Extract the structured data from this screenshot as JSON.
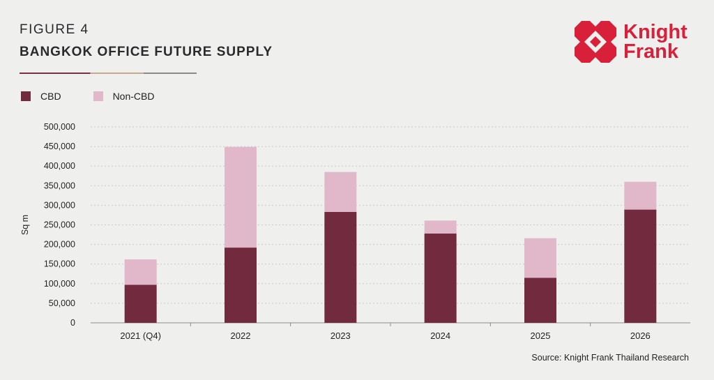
{
  "header": {
    "figure_label": "FIGURE 4",
    "title": "BANGKOK OFFICE FUTURE SUPPLY"
  },
  "logo": {
    "line1": "Knight",
    "line2": "Frank",
    "color": "#d8203a"
  },
  "colors": {
    "cbd": "#722a3e",
    "non_cbd": "#e1b8c9",
    "grid": "#c8c8c8",
    "background": "#eff0ee"
  },
  "source": "Source: Knight Frank Thailand Research",
  "chart_data": {
    "type": "bar",
    "stacked": true,
    "categories": [
      "2021 (Q4)",
      "2022",
      "2023",
      "2024",
      "2025",
      "2026"
    ],
    "series": [
      {
        "name": "CBD",
        "values": [
          97000,
          192000,
          283000,
          228000,
          115000,
          289000
        ]
      },
      {
        "name": "Non-CBD",
        "values": [
          65000,
          257000,
          102000,
          33000,
          101000,
          71000
        ]
      }
    ],
    "ylabel": "Sq m",
    "xlabel": "",
    "ylim": [
      0,
      500000
    ],
    "yticks": [
      0,
      50000,
      100000,
      150000,
      200000,
      250000,
      300000,
      350000,
      400000,
      450000,
      500000
    ],
    "ytick_labels": [
      "0",
      "50,000",
      "100,000",
      "150,000",
      "200,000",
      "250,000",
      "300,000",
      "350,000",
      "400,000",
      "450,000",
      "500,000"
    ],
    "grid": true,
    "legend_position": "top-left"
  }
}
